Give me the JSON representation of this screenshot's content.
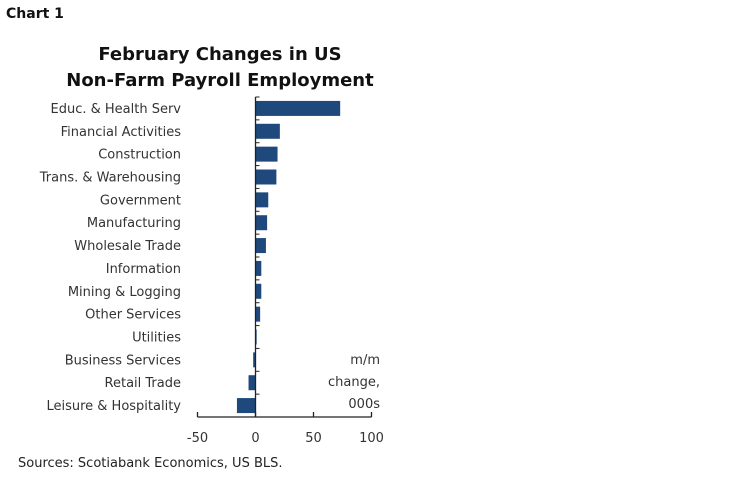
{
  "chart_label": "Chart 1",
  "chart_data": {
    "type": "bar",
    "orientation": "horizontal",
    "title": "February Changes in US Non-Farm Payroll Employment",
    "title_lines": [
      "February Changes in US",
      "Non-Farm Payroll Employment"
    ],
    "categories": [
      "Educ. & Health Serv",
      "Financial Activities",
      "Construction",
      "Trans. & Warehousing",
      "Government",
      "Manufacturing",
      "Wholesale Trade",
      "Information",
      "Mining & Logging",
      "Other Services",
      "Utilities",
      "Business Services",
      "Retail Trade",
      "Leisure & Hospitality"
    ],
    "values": [
      73,
      21,
      19,
      18,
      11,
      10,
      9,
      5,
      5,
      4,
      1,
      -2,
      -6,
      -16
    ],
    "xlim": [
      -50,
      100
    ],
    "xticks": [
      -50,
      0,
      50,
      100
    ],
    "unit_label": [
      "m/m",
      "change,",
      "000s"
    ],
    "grid": false,
    "bar_color": "#1f497d"
  },
  "source": "Sources: Scotiabank Economics, US BLS."
}
